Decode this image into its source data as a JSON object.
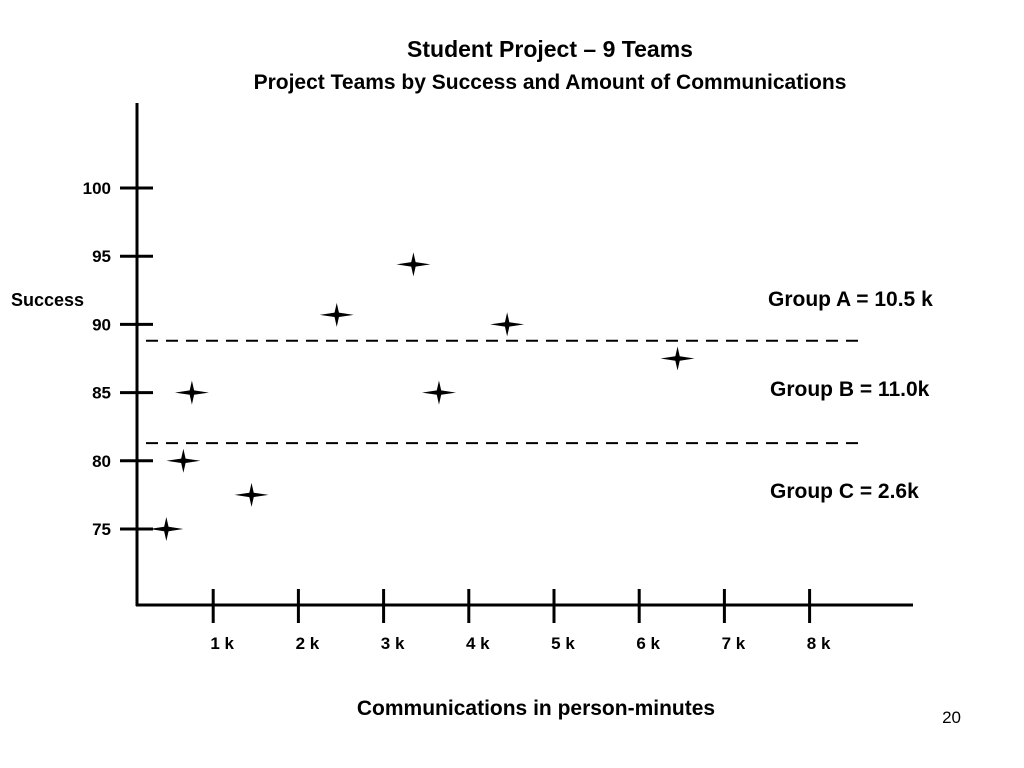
{
  "slide": {
    "title": "Student Project – 9 Teams",
    "subtitle": "Project Teams by Success and Amount of Communications",
    "page_number": "20"
  },
  "chart_data": {
    "type": "scatter",
    "title": "Student Project – 9 Teams",
    "subtitle": "Project Teams by Success and Amount of Communications",
    "xlabel": "Communications in person-minutes",
    "ylabel": "Success",
    "x_unit": "k person-minutes",
    "x_ticks": [
      1,
      2,
      3,
      4,
      5,
      6,
      7,
      8
    ],
    "x_tick_labels": [
      "1 k",
      "2 k",
      "3 k",
      "4 k",
      "5 k",
      "6 k",
      "7 k",
      "8 k"
    ],
    "y_ticks": [
      75,
      80,
      85,
      90,
      95,
      100
    ],
    "y_tick_labels": [
      "75",
      "80",
      "85",
      "90",
      "95",
      "100"
    ],
    "marker": "four-point-star",
    "grid": false,
    "points": [
      {
        "x": 0.45,
        "y": 75
      },
      {
        "x": 0.65,
        "y": 80
      },
      {
        "x": 0.75,
        "y": 85
      },
      {
        "x": 1.45,
        "y": 77.5
      },
      {
        "x": 2.45,
        "y": 90.7
      },
      {
        "x": 3.35,
        "y": 94.4
      },
      {
        "x": 3.65,
        "y": 85
      },
      {
        "x": 4.45,
        "y": 90
      },
      {
        "x": 6.45,
        "y": 87.5
      }
    ],
    "threshold_lines": [
      {
        "y": 88.8,
        "style": "dashed"
      },
      {
        "y": 81.3,
        "style": "dashed"
      }
    ],
    "group_labels": [
      "Group A = 10.5 k",
      "Group B = 11.0k",
      "Group C = 2.6k"
    ]
  }
}
